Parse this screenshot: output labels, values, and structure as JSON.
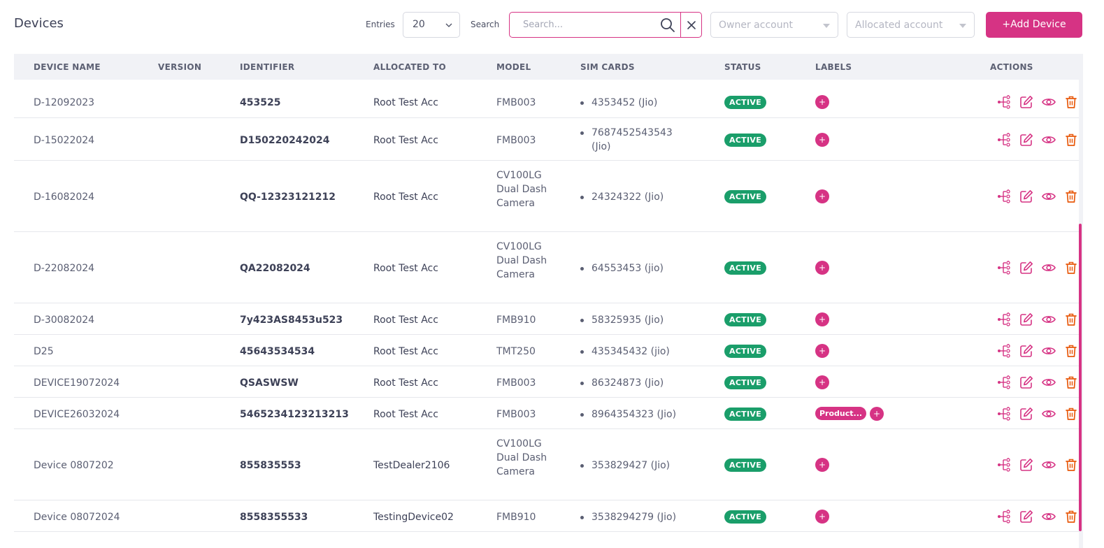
{
  "header": {
    "title": "Devices",
    "entries_label": "Entries",
    "entries_value": "20",
    "search_label": "Search",
    "search_placeholder": "Search...",
    "owner_placeholder": "Owner account",
    "allocated_placeholder": "Allocated account",
    "add_button": "+Add Device"
  },
  "columns": [
    "DEVICE NAME",
    "VERSION",
    "IDENTIFIER",
    "ALLOCATED TO",
    "MODEL",
    "SIM CARDS",
    "STATUS",
    "LABELS",
    "ACTIONS"
  ],
  "rows": [
    {
      "name": "D-12092023",
      "version": "",
      "identifier": "453525",
      "allocated_to": "Root Test Acc",
      "model": "FMB003",
      "sim": "4353452 (Jio)",
      "status": "ACTIVE",
      "labels": []
    },
    {
      "name": "D-15022024",
      "version": "",
      "identifier": "D150220242024",
      "allocated_to": "Root Test Acc",
      "model": "FMB003",
      "sim": "7687452543543 (Jio)",
      "status": "ACTIVE",
      "labels": []
    },
    {
      "name": "D-16082024",
      "version": "",
      "identifier": "QQ-12323121212",
      "allocated_to": "Root Test Acc",
      "model": "CV100LG Dual Dash Camera",
      "sim": "24324322 (Jio)",
      "status": "ACTIVE",
      "labels": []
    },
    {
      "name": "D-22082024",
      "version": "",
      "identifier": "QA22082024",
      "allocated_to": "Root Test Acc",
      "model": "CV100LG Dual Dash Camera",
      "sim": "64553453 (jio)",
      "status": "ACTIVE",
      "labels": []
    },
    {
      "name": "D-30082024",
      "version": "",
      "identifier": "7y423AS8453u523",
      "allocated_to": "Root Test Acc",
      "model": "FMB910",
      "sim": "58325935 (Jio)",
      "status": "ACTIVE",
      "labels": []
    },
    {
      "name": "D25",
      "version": "",
      "identifier": "45643534534",
      "allocated_to": "Root Test Acc",
      "model": "TMT250",
      "sim": "435345432 (jio)",
      "status": "ACTIVE",
      "labels": []
    },
    {
      "name": "DEVICE19072024",
      "version": "",
      "identifier": "QSASWSW",
      "allocated_to": "Root Test Acc",
      "model": "FMB003",
      "sim": "86324873 (Jio)",
      "status": "ACTIVE",
      "labels": []
    },
    {
      "name": "DEVICE26032024",
      "version": "",
      "identifier": "5465234123213213",
      "allocated_to": "Root Test Acc",
      "model": "FMB003",
      "sim": "8964354323 (Jio)",
      "status": "ACTIVE",
      "labels": [
        "Product..."
      ]
    },
    {
      "name": "Device 0807202",
      "version": "",
      "identifier": "855835553",
      "allocated_to": "TestDealer2106",
      "model": "CV100LG Dual Dash Camera",
      "sim": "353829427 (Jio)",
      "status": "ACTIVE",
      "labels": []
    },
    {
      "name": "Device 08072024",
      "version": "",
      "identifier": "8558355533",
      "allocated_to": "TestingDevice02",
      "model": "FMB910",
      "sim": "3538294279 (Jio)",
      "status": "ACTIVE",
      "labels": []
    }
  ],
  "icons": {
    "add_label": "plus-icon",
    "actions": [
      "hierarchy-icon",
      "edit-icon",
      "view-icon",
      "delete-icon"
    ]
  },
  "colors": {
    "accent": "#d63384",
    "status_active": "#1a9e6a",
    "delete": "#e8590c"
  }
}
